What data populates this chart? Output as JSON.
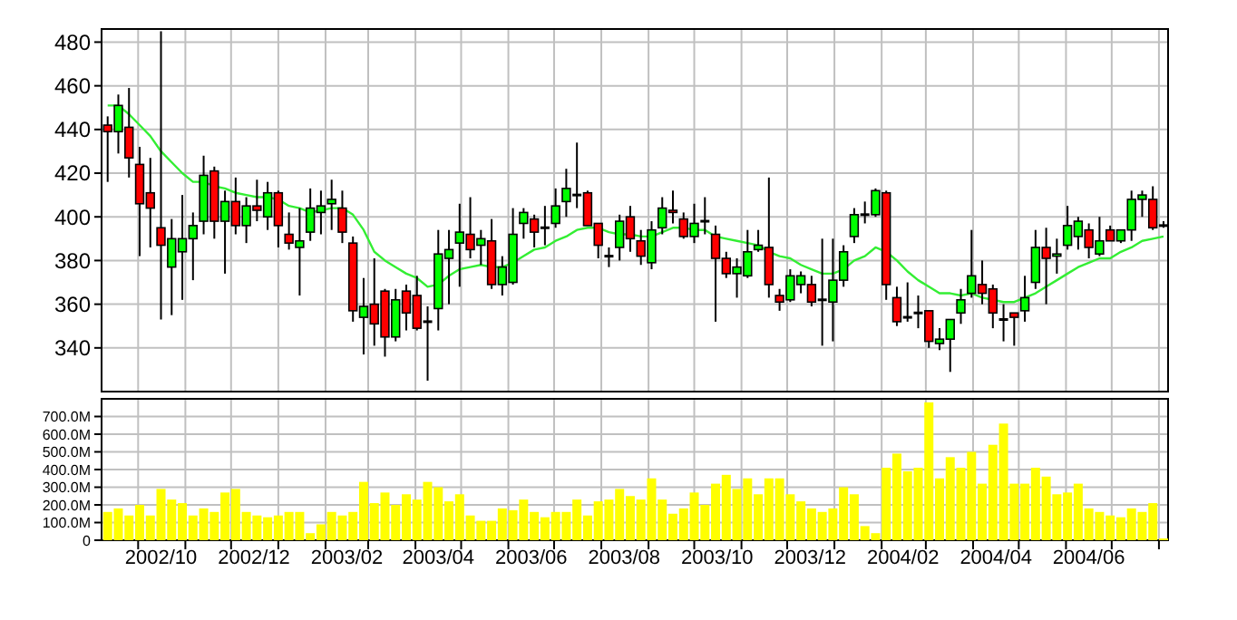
{
  "chart_data": [
    {
      "type": "candlestick",
      "x": [
        "2002-09-11",
        "2002-09-18",
        "2002-09-25",
        "2002-10-02",
        "2002-10-09",
        "2002-10-16",
        "2002-10-23",
        "2002-10-30",
        "2002-11-06",
        "2002-11-13",
        "2002-11-20",
        "2002-11-27",
        "2002-12-04",
        "2002-12-11",
        "2002-12-18",
        "2002-12-25",
        "2003-01-01",
        "2003-01-08",
        "2003-01-15",
        "2003-01-22",
        "2003-01-29",
        "2003-02-05",
        "2003-02-12",
        "2003-02-19",
        "2003-02-26",
        "2003-03-05",
        "2003-03-12",
        "2003-03-19",
        "2003-03-26",
        "2003-04-02",
        "2003-04-09",
        "2003-04-16",
        "2003-04-23",
        "2003-04-30",
        "2003-05-07",
        "2003-05-14",
        "2003-05-21",
        "2003-05-28",
        "2003-06-04",
        "2003-06-11",
        "2003-06-18",
        "2003-06-25",
        "2003-07-02",
        "2003-07-09",
        "2003-07-16",
        "2003-07-23",
        "2003-07-30",
        "2003-08-06",
        "2003-08-13",
        "2003-08-20",
        "2003-08-27",
        "2003-09-03",
        "2003-09-10",
        "2003-09-17",
        "2003-09-24",
        "2003-10-01",
        "2003-10-08",
        "2003-10-15",
        "2003-10-22",
        "2003-10-29",
        "2003-11-05",
        "2003-11-12",
        "2003-11-19",
        "2003-11-26",
        "2003-12-03",
        "2003-12-10",
        "2003-12-17",
        "2003-12-24",
        "2003-12-31",
        "2004-01-07",
        "2004-01-14",
        "2004-01-21",
        "2004-01-28",
        "2004-02-04",
        "2004-02-11",
        "2004-02-18",
        "2004-02-25",
        "2004-03-03",
        "2004-03-10",
        "2004-03-17",
        "2004-03-24",
        "2004-03-31",
        "2004-04-07",
        "2004-04-14",
        "2004-04-21",
        "2004-04-28",
        "2004-05-05",
        "2004-05-12",
        "2004-05-19",
        "2004-05-26",
        "2004-06-02",
        "2004-06-09",
        "2004-06-16",
        "2004-06-23",
        "2004-06-30",
        "2004-07-07",
        "2004-07-14",
        "2004-07-21",
        "2004-07-28",
        "2004-08-04"
      ],
      "ohlc": [
        [
          442,
          446,
          416,
          439
        ],
        [
          439,
          456,
          429,
          451
        ],
        [
          441,
          459,
          418,
          427
        ],
        [
          424,
          432,
          382,
          406
        ],
        [
          411,
          427,
          386,
          404
        ],
        [
          395,
          485,
          353,
          387
        ],
        [
          377,
          399,
          355,
          390
        ],
        [
          384,
          410,
          362,
          390
        ],
        [
          390,
          402,
          371,
          396
        ],
        [
          398,
          428,
          392,
          419
        ],
        [
          421,
          423,
          390,
          398
        ],
        [
          398,
          412,
          374,
          407
        ],
        [
          407,
          418,
          392,
          396
        ],
        [
          396,
          409,
          388,
          405
        ],
        [
          405,
          417,
          398,
          403
        ],
        [
          400,
          416,
          394,
          411
        ],
        [
          411,
          412,
          386,
          396
        ],
        [
          392,
          402,
          385,
          388
        ],
        [
          386,
          404,
          364,
          389
        ],
        [
          393,
          413,
          389,
          404
        ],
        [
          402,
          412,
          392,
          405
        ],
        [
          406,
          417,
          394,
          408
        ],
        [
          404,
          412,
          388,
          393
        ],
        [
          388,
          391,
          352,
          357
        ],
        [
          354,
          372,
          337,
          359
        ],
        [
          360,
          381,
          341,
          351
        ],
        [
          366,
          367,
          336,
          345
        ],
        [
          345,
          367,
          343,
          362
        ],
        [
          366,
          369,
          348,
          356
        ],
        [
          364,
          373,
          348,
          349
        ],
        [
          352,
          359,
          325,
          352
        ],
        [
          358,
          394,
          348,
          383
        ],
        [
          381,
          394,
          360,
          385
        ],
        [
          388,
          406,
          368,
          393
        ],
        [
          392,
          409,
          381,
          385
        ],
        [
          387,
          394,
          378,
          390
        ],
        [
          389,
          399,
          367,
          369
        ],
        [
          369,
          382,
          364,
          377
        ],
        [
          370,
          404,
          369,
          392
        ],
        [
          397,
          404,
          390,
          402
        ],
        [
          399,
          401,
          386,
          393
        ],
        [
          395,
          405,
          387,
          395
        ],
        [
          397,
          413,
          395,
          405
        ],
        [
          407,
          422,
          400,
          413
        ],
        [
          410,
          434,
          404,
          410
        ],
        [
          411,
          412,
          396,
          396
        ],
        [
          397,
          397,
          381,
          387
        ],
        [
          382,
          386,
          377,
          382
        ],
        [
          386,
          401,
          380,
          398
        ],
        [
          400,
          405,
          384,
          390
        ],
        [
          389,
          394,
          378,
          382
        ],
        [
          379,
          398,
          376,
          394
        ],
        [
          395,
          409,
          392,
          404
        ],
        [
          403,
          412,
          397,
          402
        ],
        [
          399,
          402,
          390,
          391
        ],
        [
          391,
          406,
          388,
          397
        ],
        [
          398,
          409,
          392,
          398
        ],
        [
          392,
          396,
          352,
          381
        ],
        [
          381,
          384,
          372,
          374
        ],
        [
          374,
          381,
          363,
          377
        ],
        [
          373,
          394,
          372,
          384
        ],
        [
          385,
          394,
          384,
          387
        ],
        [
          386,
          418,
          363,
          369
        ],
        [
          364,
          367,
          357,
          361
        ],
        [
          362,
          376,
          361,
          373
        ],
        [
          369,
          375,
          365,
          373
        ],
        [
          369,
          373,
          359,
          361
        ],
        [
          362,
          390,
          341,
          362
        ],
        [
          361,
          390,
          343,
          371
        ],
        [
          371,
          387,
          368,
          384
        ],
        [
          391,
          404,
          388,
          401
        ],
        [
          401,
          407,
          397,
          401
        ],
        [
          401,
          413,
          400,
          412
        ],
        [
          411,
          412,
          362,
          369
        ],
        [
          363,
          368,
          350,
          352
        ],
        [
          354,
          370,
          352,
          354
        ],
        [
          356,
          364,
          349,
          356
        ],
        [
          357,
          357,
          340,
          343
        ],
        [
          342,
          349,
          339,
          344
        ],
        [
          344,
          353,
          329,
          353
        ],
        [
          356,
          367,
          351,
          362
        ],
        [
          365,
          394,
          363,
          373
        ],
        [
          369,
          380,
          360,
          365
        ],
        [
          367,
          369,
          349,
          356
        ],
        [
          353,
          360,
          343,
          353
        ],
        [
          356,
          356,
          341,
          354
        ],
        [
          357,
          373,
          352,
          363
        ],
        [
          370,
          394,
          367,
          386
        ],
        [
          386,
          395,
          360,
          381
        ],
        [
          382,
          390,
          374,
          383
        ],
        [
          387,
          405,
          385,
          396
        ],
        [
          391,
          400,
          385,
          398
        ],
        [
          394,
          397,
          381,
          386
        ],
        [
          383,
          400,
          382,
          389
        ],
        [
          394,
          396,
          389,
          389
        ],
        [
          389,
          394,
          388,
          394
        ],
        [
          394,
          412,
          389,
          408
        ],
        [
          408,
          412,
          400,
          410
        ],
        [
          408,
          414,
          394,
          395
        ],
        [
          396,
          398,
          395,
          396
        ]
      ],
      "colors": [
        "#ff0000",
        "#00ff00",
        "#ff0000",
        "#ff0000",
        "#ff0000",
        "#ff0000",
        "#00ff00",
        "#00ff00",
        "#00ff00",
        "#00ff00",
        "#ff0000",
        "#00ff00",
        "#ff0000",
        "#00ff00",
        "#ff0000",
        "#00ff00",
        "#ff0000",
        "#ff0000",
        "#00ff00",
        "#00ff00",
        "#00ff00",
        "#00ff00",
        "#ff0000",
        "#ff0000",
        "#00ff00",
        "#ff0000",
        "#ff0000",
        "#00ff00",
        "#ff0000",
        "#ff0000",
        "#000000",
        "#00ff00",
        "#00ff00",
        "#00ff00",
        "#ff0000",
        "#00ff00",
        "#ff0000",
        "#00ff00",
        "#00ff00",
        "#00ff00",
        "#ff0000",
        "#000000",
        "#00ff00",
        "#00ff00",
        "#000000",
        "#ff0000",
        "#ff0000",
        "#000000",
        "#00ff00",
        "#ff0000",
        "#ff0000",
        "#00ff00",
        "#00ff00",
        "#ff0000",
        "#ff0000",
        "#00ff00",
        "#000000",
        "#ff0000",
        "#ff0000",
        "#00ff00",
        "#00ff00",
        "#00ff00",
        "#ff0000",
        "#ff0000",
        "#00ff00",
        "#00ff00",
        "#ff0000",
        "#000000",
        "#00ff00",
        "#00ff00",
        "#00ff00",
        "#000000",
        "#00ff00",
        "#ff0000",
        "#ff0000",
        "#000000",
        "#000000",
        "#ff0000",
        "#00ff00",
        "#00ff00",
        "#00ff00",
        "#00ff00",
        "#ff0000",
        "#ff0000",
        "#000000",
        "#ff0000",
        "#00ff00",
        "#00ff00",
        "#ff0000",
        "#00ff00",
        "#00ff00",
        "#00ff00",
        "#ff0000",
        "#00ff00",
        "#ff0000",
        "#00ff00",
        "#00ff00",
        "#00ff00",
        "#ff0000",
        "#000000"
      ],
      "series": [
        {
          "type": "line",
          "color": "#33ee33",
          "values": [
            451,
            451,
            447,
            442,
            437,
            430,
            425,
            420,
            416,
            416,
            414,
            413,
            411,
            410,
            409,
            409,
            408,
            405,
            404,
            402,
            403,
            404,
            404,
            401,
            394,
            384,
            380,
            377,
            374,
            372,
            368,
            369,
            373,
            376,
            377,
            378,
            377,
            377,
            379,
            382,
            385,
            386,
            389,
            391,
            394,
            395,
            395,
            393,
            392,
            392,
            391,
            391,
            393,
            395,
            395,
            394,
            394,
            391,
            390,
            389,
            388,
            387,
            384,
            382,
            381,
            378,
            376,
            374,
            374,
            376,
            380,
            382,
            386,
            384,
            380,
            375,
            371,
            368,
            365,
            365,
            364,
            365,
            363,
            362,
            361,
            361,
            363,
            365,
            368,
            371,
            374,
            377,
            379,
            381,
            381,
            384,
            386,
            389,
            390,
            391
          ]
        }
      ],
      "xlim": [
        "2002-09-07",
        "2004-08-07"
      ],
      "xticks": [
        {
          "value": "2002-10-01",
          "label": null
        },
        {
          "value": "2002-11-01",
          "label": null
        },
        {
          "value": "2002-12-01",
          "label": null
        },
        {
          "value": "2003-01-01",
          "label": null
        },
        {
          "value": "2003-02-01",
          "label": null
        },
        {
          "value": "2003-03-01",
          "label": null
        },
        {
          "value": "2003-04-01",
          "label": null
        },
        {
          "value": "2003-05-01",
          "label": null
        },
        {
          "value": "2003-06-01",
          "label": null
        },
        {
          "value": "2003-07-01",
          "label": null
        },
        {
          "value": "2003-08-01",
          "label": null
        },
        {
          "value": "2003-09-01",
          "label": null
        },
        {
          "value": "2003-10-01",
          "label": null
        },
        {
          "value": "2003-11-01",
          "label": null
        },
        {
          "value": "2003-12-01",
          "label": null
        },
        {
          "value": "2004-01-01",
          "label": null
        },
        {
          "value": "2004-02-01",
          "label": null
        },
        {
          "value": "2004-03-01",
          "label": null
        },
        {
          "value": "2004-04-01",
          "label": null
        },
        {
          "value": "2004-05-01",
          "label": null
        },
        {
          "value": "2004-06-01",
          "label": null
        },
        {
          "value": "2004-07-01",
          "label": null
        },
        {
          "value": "2004-08-01",
          "label": null
        }
      ],
      "ylim": [
        320,
        486
      ],
      "yticks": [
        340,
        360,
        380,
        400,
        420,
        440,
        460,
        480
      ],
      "grid": true,
      "tick_labels": "y"
    },
    {
      "type": "bar",
      "x": [
        "2002-09-11",
        "2002-09-18",
        "2002-09-25",
        "2002-10-02",
        "2002-10-09",
        "2002-10-16",
        "2002-10-23",
        "2002-10-30",
        "2002-11-06",
        "2002-11-13",
        "2002-11-20",
        "2002-11-27",
        "2002-12-04",
        "2002-12-11",
        "2002-12-18",
        "2002-12-25",
        "2003-01-01",
        "2003-01-08",
        "2003-01-15",
        "2003-01-22",
        "2003-01-29",
        "2003-02-05",
        "2003-02-12",
        "2003-02-19",
        "2003-02-26",
        "2003-03-05",
        "2003-03-12",
        "2003-03-19",
        "2003-03-26",
        "2003-04-02",
        "2003-04-09",
        "2003-04-16",
        "2003-04-23",
        "2003-04-30",
        "2003-05-07",
        "2003-05-14",
        "2003-05-21",
        "2003-05-28",
        "2003-06-04",
        "2003-06-11",
        "2003-06-18",
        "2003-06-25",
        "2003-07-02",
        "2003-07-09",
        "2003-07-16",
        "2003-07-23",
        "2003-07-30",
        "2003-08-06",
        "2003-08-13",
        "2003-08-20",
        "2003-08-27",
        "2003-09-03",
        "2003-09-10",
        "2003-09-17",
        "2003-09-24",
        "2003-10-01",
        "2003-10-08",
        "2003-10-15",
        "2003-10-22",
        "2003-10-29",
        "2003-11-05",
        "2003-11-12",
        "2003-11-19",
        "2003-11-26",
        "2003-12-03",
        "2003-12-10",
        "2003-12-17",
        "2003-12-24",
        "2003-12-31",
        "2004-01-07",
        "2004-01-14",
        "2004-01-21",
        "2004-01-28",
        "2004-02-04",
        "2004-02-11",
        "2004-02-18",
        "2004-02-25",
        "2004-03-03",
        "2004-03-10",
        "2004-03-17",
        "2004-03-24",
        "2004-03-31",
        "2004-04-07",
        "2004-04-14",
        "2004-04-21",
        "2004-04-28",
        "2004-05-05",
        "2004-05-12",
        "2004-05-19",
        "2004-05-26",
        "2004-06-02",
        "2004-06-09",
        "2004-06-16",
        "2004-06-23",
        "2004-06-30",
        "2004-07-07",
        "2004-07-14",
        "2004-07-21",
        "2004-07-28",
        "2004-08-04"
      ],
      "values": [
        160,
        180,
        140,
        200,
        140,
        290,
        230,
        210,
        140,
        180,
        160,
        270,
        290,
        160,
        140,
        130,
        140,
        160,
        160,
        40,
        90,
        160,
        140,
        160,
        330,
        210,
        270,
        200,
        260,
        230,
        330,
        300,
        220,
        260,
        140,
        110,
        110,
        180,
        170,
        230,
        160,
        130,
        160,
        160,
        230,
        140,
        220,
        230,
        290,
        250,
        230,
        350,
        230,
        150,
        180,
        270,
        200,
        320,
        370,
        290,
        350,
        260,
        350,
        350,
        260,
        220,
        180,
        160,
        180,
        300,
        260,
        80,
        40,
        410,
        490,
        390,
        410,
        780,
        350,
        470,
        410,
        500,
        320,
        540,
        660,
        320,
        320,
        410,
        360,
        260,
        270,
        320,
        180,
        160,
        140,
        130,
        180,
        160,
        210,
        10
      ],
      "color": "#ffff00",
      "xlim": [
        "2002-09-07",
        "2004-08-07"
      ],
      "xticks": [
        {
          "value": "2002-10-01",
          "label": null
        },
        {
          "value": "2002-10-16",
          "label": "2002/10"
        },
        {
          "value": "2002-11-01",
          "label": null
        },
        {
          "value": "2002-12-01",
          "label": null
        },
        {
          "value": "2002-12-16",
          "label": "2002/12"
        },
        {
          "value": "2003-01-01",
          "label": null
        },
        {
          "value": "2003-02-01",
          "label": null
        },
        {
          "value": "2003-02-15",
          "label": "2003/02"
        },
        {
          "value": "2003-03-01",
          "label": null
        },
        {
          "value": "2003-04-01",
          "label": null
        },
        {
          "value": "2003-04-16",
          "label": "2003/04"
        },
        {
          "value": "2003-05-01",
          "label": null
        },
        {
          "value": "2003-06-01",
          "label": null
        },
        {
          "value": "2003-06-16",
          "label": "2003/06"
        },
        {
          "value": "2003-07-01",
          "label": null
        },
        {
          "value": "2003-08-01",
          "label": null
        },
        {
          "value": "2003-08-16",
          "label": "2003/08"
        },
        {
          "value": "2003-09-01",
          "label": null
        },
        {
          "value": "2003-10-01",
          "label": null
        },
        {
          "value": "2003-10-16",
          "label": "2003/10"
        },
        {
          "value": "2003-11-01",
          "label": null
        },
        {
          "value": "2003-12-01",
          "label": null
        },
        {
          "value": "2003-12-16",
          "label": "2003/12"
        },
        {
          "value": "2004-01-01",
          "label": null
        },
        {
          "value": "2004-02-01",
          "label": null
        },
        {
          "value": "2004-02-15",
          "label": "2004/02"
        },
        {
          "value": "2004-03-01",
          "label": null
        },
        {
          "value": "2004-04-01",
          "label": null
        },
        {
          "value": "2004-04-16",
          "label": "2004/04"
        },
        {
          "value": "2004-05-01",
          "label": null
        },
        {
          "value": "2004-06-01",
          "label": null
        },
        {
          "value": "2004-06-16",
          "label": "2004/06"
        },
        {
          "value": "2004-07-01",
          "label": null
        },
        {
          "value": "2004-08-01",
          "label": null
        }
      ],
      "ylim": [
        0,
        800
      ],
      "yticks": [
        0,
        {
          "value": 100,
          "label": "100.0M"
        },
        {
          "value": 200,
          "label": "200.0M"
        },
        {
          "value": 300,
          "label": "300.0M"
        },
        {
          "value": 400,
          "label": "400.0M"
        },
        {
          "value": 500,
          "label": "500.0M"
        },
        {
          "value": 600,
          "label": "600.0M"
        },
        {
          "value": 700,
          "label": "700.0M"
        }
      ],
      "grid": true
    }
  ]
}
